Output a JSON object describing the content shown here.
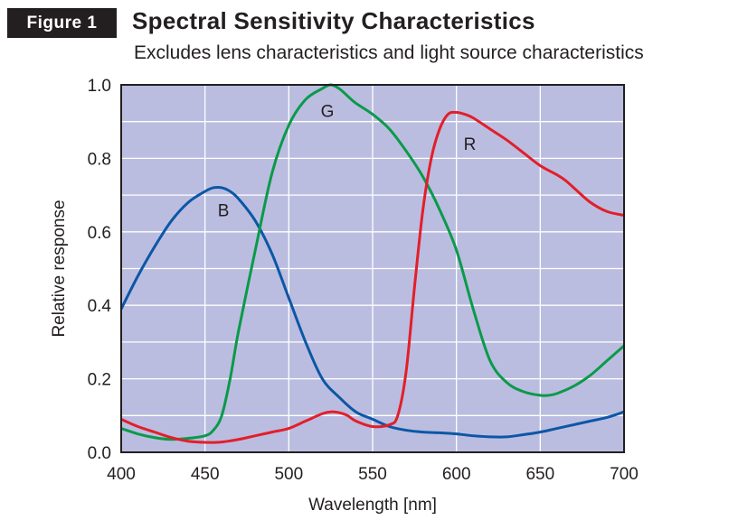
{
  "figure_badge": "Figure 1",
  "chart_data": {
    "type": "line",
    "title": "Spectral Sensitivity Characteristics",
    "subtitle": "Excludes lens characteristics and light source characteristics",
    "xlabel": "Wavelength [nm]",
    "ylabel": "Relative response",
    "xlim": [
      400,
      700
    ],
    "ylim": [
      0,
      1.0
    ],
    "x_ticks": [
      400,
      450,
      500,
      550,
      600,
      650,
      700
    ],
    "y_ticks": [
      0.0,
      0.2,
      0.4,
      0.6,
      0.8,
      1.0
    ],
    "y_tick_labels": [
      "0.0",
      "0.2",
      "0.4",
      "0.6",
      "0.8",
      "1.0"
    ],
    "grid": true,
    "plot_background": "#bbbde0",
    "series": [
      {
        "name": "B",
        "color": "#0b57a6",
        "label_pos": [
          461,
          0.66
        ],
        "x": [
          400,
          410,
          420,
          430,
          440,
          450,
          455,
          460,
          465,
          470,
          480,
          490,
          500,
          510,
          520,
          530,
          540,
          550,
          560,
          570,
          580,
          590,
          600,
          610,
          620,
          630,
          640,
          650,
          660,
          670,
          680,
          690,
          700
        ],
        "y": [
          0.39,
          0.48,
          0.56,
          0.63,
          0.68,
          0.71,
          0.72,
          0.72,
          0.71,
          0.69,
          0.63,
          0.54,
          0.42,
          0.3,
          0.2,
          0.15,
          0.11,
          0.09,
          0.07,
          0.06,
          0.055,
          0.053,
          0.05,
          0.045,
          0.042,
          0.042,
          0.048,
          0.055,
          0.065,
          0.075,
          0.085,
          0.095,
          0.11
        ]
      },
      {
        "name": "G",
        "color": "#0a9a4a",
        "label_pos": [
          523,
          0.93
        ],
        "x": [
          400,
          410,
          420,
          430,
          440,
          450,
          455,
          460,
          465,
          470,
          480,
          490,
          500,
          510,
          520,
          525,
          530,
          535,
          540,
          550,
          560,
          570,
          580,
          590,
          600,
          610,
          620,
          630,
          640,
          650,
          655,
          660,
          670,
          680,
          690,
          700
        ],
        "y": [
          0.065,
          0.05,
          0.04,
          0.035,
          0.038,
          0.045,
          0.06,
          0.1,
          0.2,
          0.33,
          0.55,
          0.76,
          0.89,
          0.96,
          0.99,
          1.0,
          0.99,
          0.97,
          0.95,
          0.92,
          0.88,
          0.82,
          0.75,
          0.66,
          0.55,
          0.39,
          0.25,
          0.19,
          0.165,
          0.155,
          0.155,
          0.16,
          0.18,
          0.21,
          0.25,
          0.29
        ]
      },
      {
        "name": "R",
        "color": "#e31e2a",
        "label_pos": [
          608,
          0.84
        ],
        "x": [
          400,
          410,
          420,
          430,
          440,
          450,
          460,
          470,
          480,
          490,
          500,
          510,
          520,
          525,
          530,
          535,
          540,
          550,
          560,
          565,
          570,
          575,
          580,
          585,
          590,
          595,
          600,
          605,
          610,
          620,
          630,
          640,
          650,
          660,
          665,
          670,
          680,
          690,
          700
        ],
        "y": [
          0.09,
          0.07,
          0.055,
          0.04,
          0.03,
          0.027,
          0.028,
          0.035,
          0.045,
          0.055,
          0.065,
          0.085,
          0.105,
          0.11,
          0.108,
          0.1,
          0.085,
          0.07,
          0.075,
          0.1,
          0.22,
          0.45,
          0.66,
          0.8,
          0.88,
          0.92,
          0.925,
          0.92,
          0.91,
          0.88,
          0.85,
          0.815,
          0.78,
          0.755,
          0.74,
          0.72,
          0.68,
          0.655,
          0.645
        ]
      }
    ]
  }
}
